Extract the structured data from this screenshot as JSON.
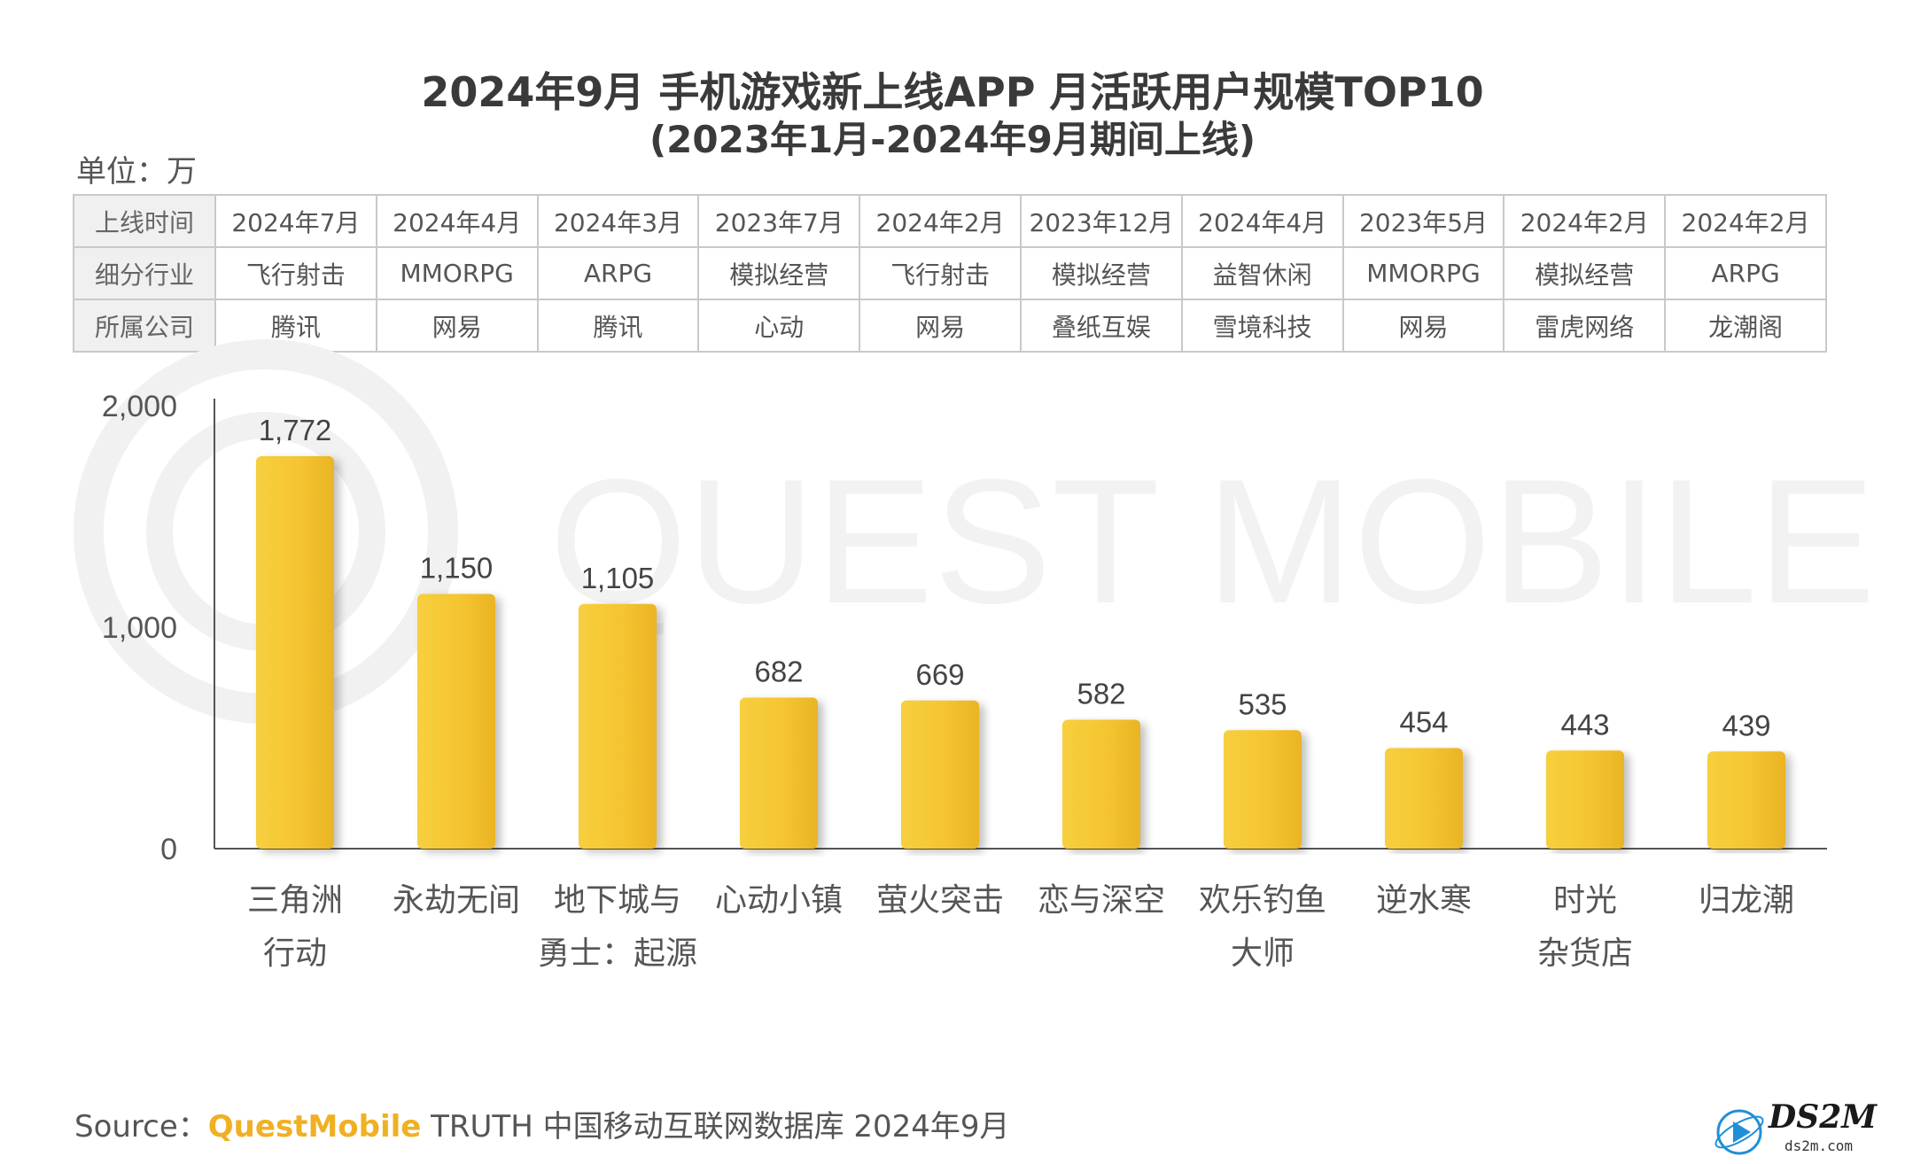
{
  "title": "2024年9月 手机游戏新上线APP 月活跃用户规模TOP10",
  "subtitle": "(2023年1月-2024年9月期间上线)",
  "unit_label": "单位：万",
  "info_table": {
    "row_headers": [
      "上线时间",
      "细分行业",
      "所属公司"
    ],
    "launch": [
      "2024年7月",
      "2024年4月",
      "2024年3月",
      "2023年7月",
      "2024年2月",
      "2023年12月",
      "2024年4月",
      "2023年5月",
      "2024年2月",
      "2024年2月"
    ],
    "genre": [
      "飞行射击",
      "MMORPG",
      "ARPG",
      "模拟经营",
      "飞行射击",
      "模拟经营",
      "益智休闲",
      "MMORPG",
      "模拟经营",
      "ARPG"
    ],
    "company": [
      "腾讯",
      "网易",
      "腾讯",
      "心动",
      "网易",
      "叠纸互娱",
      "雪境科技",
      "网易",
      "雷虎网络",
      "龙潮阁"
    ]
  },
  "watermark": "QUEST MOBILE",
  "source": {
    "prefix": "Source：",
    "brand": "QuestMobile",
    "rest": " TRUTH 中国移动互联网数据库 2024年9月"
  },
  "logo": {
    "name": "DS2M",
    "domain": "ds2m.com"
  },
  "colors": {
    "bar": "#f2c12e",
    "bar_top": "#f7d96a",
    "axis": "#555555"
  },
  "chart_data": {
    "type": "bar",
    "categories": [
      [
        "三角洲",
        "行动"
      ],
      [
        "永劫无间"
      ],
      [
        "地下城与",
        "勇士：起源"
      ],
      [
        "心动小镇"
      ],
      [
        "萤火突击"
      ],
      [
        "恋与深空"
      ],
      [
        "欢乐钓鱼",
        "大师"
      ],
      [
        "逆水寒"
      ],
      [
        "时光",
        "杂货店"
      ],
      [
        "归龙潮"
      ]
    ],
    "values": [
      1772,
      1150,
      1105,
      682,
      669,
      582,
      535,
      454,
      443,
      439
    ],
    "data_labels": [
      "1,772",
      "1,150",
      "1,105",
      "682",
      "669",
      "582",
      "535",
      "454",
      "443",
      "439"
    ],
    "y_ticks": [
      0,
      1000,
      2000
    ],
    "y_tick_labels": [
      "0",
      "1,000",
      "2,000"
    ],
    "ylim": [
      0,
      2000
    ],
    "grid": false,
    "legend": "none"
  }
}
